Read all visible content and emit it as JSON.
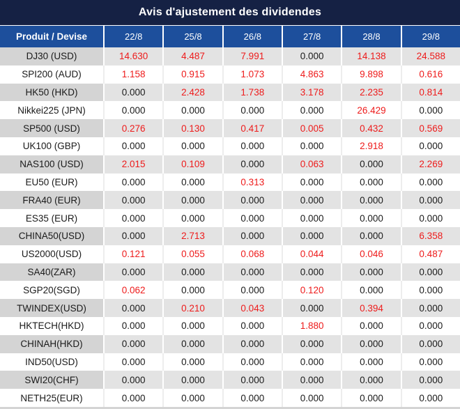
{
  "title": "Avis d'ajustement des dividendes",
  "colors": {
    "title_bg": "#152144",
    "header_bg": "#1d4f9c",
    "header_text": "#ffffff",
    "value_red": "#ee1b1b",
    "text_dark": "#1a1a1a",
    "row_gray_label": "#d4d4d4",
    "row_gray_cell": "#e3e3e3"
  },
  "table": {
    "label_header": "Produit / Devise",
    "date_headers": [
      "22/8",
      "25/8",
      "26/8",
      "27/8",
      "28/8",
      "29/8"
    ],
    "zero_value": "0.000",
    "rows": [
      {
        "product": "DJ30 (USD)",
        "values": [
          "14.630",
          "4.487",
          "7.991",
          "0.000",
          "14.138",
          "24.588"
        ]
      },
      {
        "product": "SPI200 (AUD)",
        "values": [
          "1.158",
          "0.915",
          "1.073",
          "4.863",
          "9.898",
          "0.616"
        ]
      },
      {
        "product": "HK50 (HKD)",
        "values": [
          "0.000",
          "2.428",
          "1.738",
          "3.178",
          "2.235",
          "0.814"
        ]
      },
      {
        "product": "Nikkei225 (JPN)",
        "values": [
          "0.000",
          "0.000",
          "0.000",
          "0.000",
          "26.429",
          "0.000"
        ]
      },
      {
        "product": "SP500 (USD)",
        "values": [
          "0.276",
          "0.130",
          "0.417",
          "0.005",
          "0.432",
          "0.569"
        ]
      },
      {
        "product": "UK100 (GBP)",
        "values": [
          "0.000",
          "0.000",
          "0.000",
          "0.000",
          "2.918",
          "0.000"
        ]
      },
      {
        "product": "NAS100 (USD)",
        "values": [
          "2.015",
          "0.109",
          "0.000",
          "0.063",
          "0.000",
          "2.269"
        ]
      },
      {
        "product": "EU50 (EUR)",
        "values": [
          "0.000",
          "0.000",
          "0.313",
          "0.000",
          "0.000",
          "0.000"
        ]
      },
      {
        "product": "FRA40 (EUR)",
        "values": [
          "0.000",
          "0.000",
          "0.000",
          "0.000",
          "0.000",
          "0.000"
        ]
      },
      {
        "product": "ES35 (EUR)",
        "values": [
          "0.000",
          "0.000",
          "0.000",
          "0.000",
          "0.000",
          "0.000"
        ]
      },
      {
        "product": "CHINA50(USD)",
        "values": [
          "0.000",
          "2.713",
          "0.000",
          "0.000",
          "0.000",
          "6.358"
        ]
      },
      {
        "product": "US2000(USD)",
        "values": [
          "0.121",
          "0.055",
          "0.068",
          "0.044",
          "0.046",
          "0.487"
        ]
      },
      {
        "product": "SA40(ZAR)",
        "values": [
          "0.000",
          "0.000",
          "0.000",
          "0.000",
          "0.000",
          "0.000"
        ]
      },
      {
        "product": "SGP20(SGD)",
        "values": [
          "0.062",
          "0.000",
          "0.000",
          "0.120",
          "0.000",
          "0.000"
        ]
      },
      {
        "product": "TWINDEX(USD)",
        "values": [
          "0.000",
          "0.210",
          "0.043",
          "0.000",
          "0.394",
          "0.000"
        ]
      },
      {
        "product": "HKTECH(HKD)",
        "values": [
          "0.000",
          "0.000",
          "0.000",
          "1.880",
          "0.000",
          "0.000"
        ]
      },
      {
        "product": "CHINAH(HKD)",
        "values": [
          "0.000",
          "0.000",
          "0.000",
          "0.000",
          "0.000",
          "0.000"
        ]
      },
      {
        "product": "IND50(USD)",
        "values": [
          "0.000",
          "0.000",
          "0.000",
          "0.000",
          "0.000",
          "0.000"
        ]
      },
      {
        "product": "SWI20(CHF)",
        "values": [
          "0.000",
          "0.000",
          "0.000",
          "0.000",
          "0.000",
          "0.000"
        ]
      },
      {
        "product": "NETH25(EUR)",
        "values": [
          "0.000",
          "0.000",
          "0.000",
          "0.000",
          "0.000",
          "0.000"
        ]
      }
    ]
  }
}
